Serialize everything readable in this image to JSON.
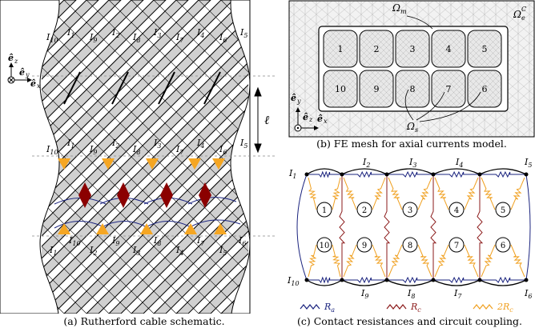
{
  "captions": {
    "a": "(a) Rutherford cable schematic.",
    "b": "(b) FE mesh for axial currents model.",
    "c": "(c) Contact resistances and circuit coupling."
  },
  "panel_a": {
    "top_labels": [
      "I10",
      "I1",
      "I9",
      "I2",
      "I8",
      "I3",
      "I7",
      "I4",
      "I6",
      "I5"
    ],
    "mid_labels": [
      "I10",
      "I1",
      "I9",
      "I2",
      "I8",
      "I3",
      "I7",
      "I4",
      "I6",
      "I5"
    ],
    "bottom_labels": [
      "I1",
      "I10",
      "I2",
      "I9",
      "I3",
      "I8",
      "I4",
      "I7",
      "I5",
      "I6"
    ],
    "length_symbol": "ℓ",
    "axes": {
      "z": "ê",
      "z_sub": "z",
      "y": "ê",
      "y_sub": "y",
      "x": "ê",
      "x_sub": "x"
    }
  },
  "panel_b": {
    "top_row": [
      "1",
      "2",
      "3",
      "4",
      "5"
    ],
    "bottom_row": [
      "10",
      "9",
      "8",
      "7",
      "6"
    ],
    "omega_m": "Ω",
    "omega_m_sub": "m",
    "omega_c": "Ω",
    "omega_c_sup": "C",
    "omega_c_sub": "e",
    "omega_s": "Ω",
    "omega_s_sub": "s",
    "axes": {
      "y": "ê",
      "y_sub": "y",
      "z": "ê",
      "z_sub": "z",
      "x": "ê",
      "x_sub": "x"
    }
  },
  "panel_c": {
    "top_row": [
      "1",
      "2",
      "3",
      "4",
      "5"
    ],
    "bottom_row": [
      "10",
      "9",
      "8",
      "7",
      "6"
    ],
    "currents_top": [
      "I1",
      "I2",
      "I3",
      "I4",
      "I5"
    ],
    "currents_bottom": [
      "I10",
      "I9",
      "I8",
      "I7",
      "I6"
    ],
    "legend": [
      {
        "label": "R",
        "sub": "a",
        "color": "#1a237e"
      },
      {
        "label": "R",
        "sub": "c",
        "color": "#8b1a1a"
      },
      {
        "label": "2R",
        "sub": "c",
        "color": "#f0a020"
      }
    ]
  },
  "colors": {
    "strand_gray": "#d0d0d0",
    "triangle_orange": "#f5a623",
    "diamond_red": "#8b0000",
    "navy": "#1a237e",
    "resistor_red": "#8b1a1a",
    "resistor_orange": "#f0a020"
  }
}
